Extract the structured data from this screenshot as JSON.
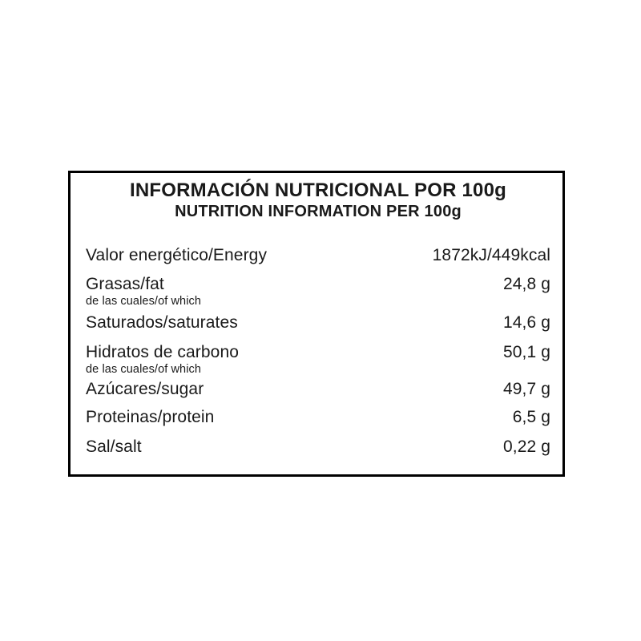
{
  "label": {
    "title": "INFORMACIÓN NUTRICIONAL POR 100g",
    "subtitle": "NUTRITION INFORMATION PER 100g",
    "sub_note_text": "de las cuales/of which",
    "rows": [
      {
        "name": "Valor energético/Energy",
        "value": "1872kJ/449kcal"
      },
      {
        "name": "Grasas/fat",
        "value": "24,8 g",
        "note": "de las cuales/of which"
      },
      {
        "name": "Saturados/saturates",
        "value": "14,6 g"
      },
      {
        "name": "Hidratos de carbono",
        "value": "50,1 g",
        "note": "de las cuales/of which"
      },
      {
        "name": "Azúcares/sugar",
        "value": "49,7 g"
      },
      {
        "name": "Proteinas/protein",
        "value": "6,5 g"
      },
      {
        "name": "Sal/salt",
        "value": "0,22 g"
      }
    ],
    "colors": {
      "background": "#ffffff",
      "border": "#000000",
      "text": "#1a1a1a"
    }
  }
}
